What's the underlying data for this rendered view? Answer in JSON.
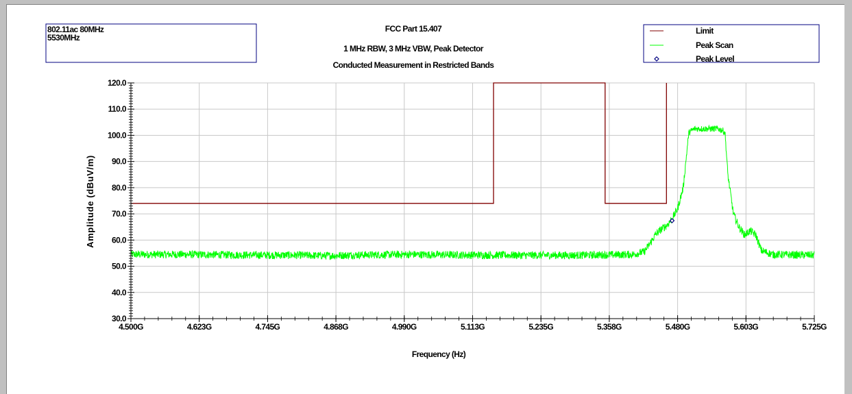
{
  "info_box": {
    "line1": "802.11ac 80MHz",
    "line2": "5530MHz"
  },
  "chart_data": {
    "type": "line",
    "title": "FCC Part 15.407",
    "subtitle_lines": [
      "1 MHz RBW, 3 MHz VBW, Peak Detector",
      "Conducted Measurement in Restricted Bands"
    ],
    "xlabel": "Frequency (Hz)",
    "ylabel": "Amplitude (dBuV/m)",
    "xlim": [
      4.5,
      5.725
    ],
    "ylim": [
      30,
      120
    ],
    "x_unit": "GHz",
    "grid": true,
    "legend_position": "top-right",
    "x_ticks": [
      {
        "value": 4.5,
        "label": "4.500G"
      },
      {
        "value": 4.6225,
        "label": "4.623G"
      },
      {
        "value": 4.745,
        "label": "4.745G"
      },
      {
        "value": 4.8675,
        "label": "4.868G"
      },
      {
        "value": 4.99,
        "label": "4.990G"
      },
      {
        "value": 5.1125,
        "label": "5.113G"
      },
      {
        "value": 5.235,
        "label": "5.235G"
      },
      {
        "value": 5.3575,
        "label": "5.358G"
      },
      {
        "value": 5.48,
        "label": "5.480G"
      },
      {
        "value": 5.6025,
        "label": "5.603G"
      },
      {
        "value": 5.725,
        "label": "5.725G"
      }
    ],
    "y_ticks": [
      {
        "value": 30,
        "label": "30.0"
      },
      {
        "value": 40,
        "label": "40.0"
      },
      {
        "value": 50,
        "label": "50.0"
      },
      {
        "value": 60,
        "label": "60.0"
      },
      {
        "value": 70,
        "label": "70.0"
      },
      {
        "value": 80,
        "label": "80.0"
      },
      {
        "value": 90,
        "label": "90.0"
      },
      {
        "value": 100,
        "label": "100.0"
      },
      {
        "value": 110,
        "label": "110.0"
      },
      {
        "value": 120,
        "label": "120.0"
      }
    ],
    "series": [
      {
        "name": "Limit",
        "color": "#800000",
        "style": "line",
        "x": [
          4.5,
          5.15,
          5.15,
          5.35,
          5.35,
          5.46,
          5.46
        ],
        "y": [
          74,
          74,
          120,
          120,
          74,
          74,
          120
        ]
      },
      {
        "name": "Peak Scan",
        "color": "#00ff00",
        "style": "noisy-line",
        "x": [
          4.5,
          4.6,
          4.7,
          4.8,
          4.85,
          4.9,
          5.0,
          5.1,
          5.2,
          5.3,
          5.4,
          5.42,
          5.43,
          5.44,
          5.45,
          5.46,
          5.47,
          5.48,
          5.49,
          5.5,
          5.51,
          5.52,
          5.53,
          5.54,
          5.55,
          5.56,
          5.565,
          5.57,
          5.58,
          5.59,
          5.6,
          5.61,
          5.62,
          5.63,
          5.65,
          5.7,
          5.725
        ],
        "y": [
          54.5,
          54.5,
          54.3,
          54.2,
          54.0,
          54.3,
          54.5,
          54.3,
          54.2,
          54.2,
          54.5,
          55.5,
          58.5,
          62.0,
          64.0,
          65.5,
          68.0,
          72.0,
          80.0,
          101.0,
          102.5,
          102.5,
          102.5,
          102.5,
          102.5,
          102.0,
          101.0,
          85.0,
          70.0,
          65.0,
          62.0,
          63.5,
          62.0,
          56.0,
          54.5,
          54.3,
          54.3
        ]
      },
      {
        "name": "Peak Level",
        "color": "#000080",
        "style": "marker",
        "x": [
          5.47
        ],
        "y": [
          67.4
        ]
      }
    ]
  }
}
